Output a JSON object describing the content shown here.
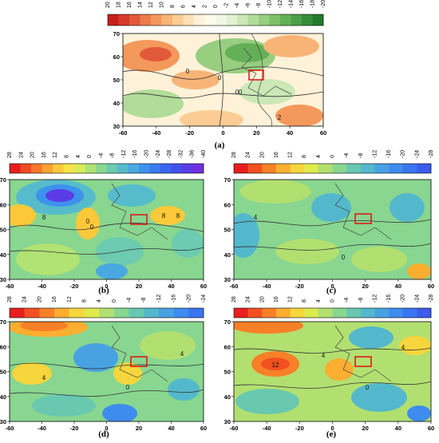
{
  "figure": {
    "panels": [
      {
        "id": "a",
        "label": "(a)",
        "colorbar_ticks": [
          "20",
          "18",
          "16",
          "14",
          "12",
          "10",
          "8",
          "6",
          "4",
          "2",
          "0",
          "-2",
          "-4",
          "-6",
          "-8",
          "-10",
          "-12",
          "-14",
          "-16",
          "-18",
          "-20"
        ],
        "colorbar_colors": [
          "#c81e1e",
          "#d83a2a",
          "#e25a3a",
          "#ec7a4a",
          "#f4995c",
          "#f8b476",
          "#fbcc93",
          "#fde2b6",
          "#fff2d8",
          "#fffbe8",
          "#f2f8e6",
          "#e2f2d2",
          "#cbe8b6",
          "#b2dc9a",
          "#98ce80",
          "#7ec068",
          "#64b056",
          "#4c9f46",
          "#368c38",
          "#227a2c"
        ],
        "xticks": [
          "-60",
          "-40",
          "-20",
          "0",
          "20",
          "40",
          "60"
        ],
        "yticks": [
          "70",
          "60",
          "50",
          "40",
          "30"
        ],
        "contour_labels": [
          "0",
          "0",
          "0",
          "0",
          "2"
        ]
      },
      {
        "id": "b",
        "label": "(b)",
        "colorbar_ticks": [
          "28",
          "24",
          "20",
          "16",
          "12",
          "8",
          "4",
          "0",
          "-4",
          "-8",
          "-12",
          "-16",
          "-20",
          "-24",
          "-28",
          "-32",
          "-36",
          "-40"
        ],
        "colorbar_colors": [
          "#e81e1e",
          "#f04a22",
          "#f6772a",
          "#fba232",
          "#fdc93a",
          "#f6e548",
          "#d9ec58",
          "#b0e274",
          "#8ad890",
          "#6ccbb0",
          "#56bccc",
          "#4aa8e0",
          "#3e92ec",
          "#3a7cf0",
          "#3a66f0",
          "#4450ee",
          "#5a3ce6",
          "#7030de"
        ],
        "xticks": [
          "-60",
          "-40",
          "-20",
          "0",
          "20",
          "40",
          "60"
        ],
        "yticks": [
          "70",
          "60",
          "50",
          "40",
          "30"
        ],
        "contour_labels": [
          "8",
          "0",
          "0",
          "8",
          "8"
        ]
      },
      {
        "id": "c",
        "label": "(c)",
        "colorbar_ticks": [
          "28",
          "24",
          "20",
          "16",
          "12",
          "8",
          "4",
          "0",
          "-4",
          "-8",
          "-12",
          "-16",
          "-20",
          "-24",
          "-28"
        ],
        "colorbar_colors": [
          "#e81e1e",
          "#f25020",
          "#f88028",
          "#fbae30",
          "#f6d63c",
          "#dfea4e",
          "#b2e070",
          "#88d690",
          "#68c8b0",
          "#54b8cc",
          "#48a2e2",
          "#3e8cee",
          "#3a74f0",
          "#3c5cec"
        ],
        "xticks": [
          "-60",
          "-40",
          "-20",
          "0",
          "20",
          "40",
          "60"
        ],
        "yticks": [
          "70",
          "60",
          "50",
          "40",
          "30"
        ],
        "contour_labels": [
          "4",
          "0"
        ]
      },
      {
        "id": "d",
        "label": "(d)",
        "colorbar_ticks": [
          "28",
          "24",
          "20",
          "16",
          "12",
          "8",
          "4",
          "0",
          "-4",
          "-8",
          "-12",
          "-16",
          "-20",
          "-24"
        ],
        "colorbar_colors": [
          "#e81e1e",
          "#f25020",
          "#f88028",
          "#fbae30",
          "#f6d63c",
          "#dfea4e",
          "#b2e070",
          "#88d690",
          "#68c8b0",
          "#54b8cc",
          "#48a2e2",
          "#3e8cee",
          "#3a74f0"
        ],
        "xticks": [
          "-60",
          "-40",
          "-20",
          "0",
          "20",
          "40",
          "60"
        ],
        "yticks": [
          "70",
          "60",
          "50",
          "40",
          "30"
        ],
        "contour_labels": [
          "4",
          "4",
          "0"
        ]
      },
      {
        "id": "e",
        "label": "(e)",
        "colorbar_ticks": [
          "28",
          "24",
          "20",
          "16",
          "12",
          "8",
          "4",
          "0",
          "-4",
          "-8",
          "-12",
          "-16",
          "-20",
          "-24",
          "-28"
        ],
        "colorbar_colors": [
          "#e81e1e",
          "#f25020",
          "#f88028",
          "#fbae30",
          "#f6d63c",
          "#dfea4e",
          "#b2e070",
          "#88d690",
          "#68c8b0",
          "#54b8cc",
          "#48a2e2",
          "#3e8cee",
          "#3a74f0",
          "#3c5cec"
        ],
        "xticks": [
          "-60",
          "-40",
          "-20",
          "0",
          "20",
          "40",
          "60"
        ],
        "yticks": [
          "70",
          "60",
          "50",
          "40",
          "30"
        ],
        "contour_labels": [
          "12",
          "4",
          "0",
          "4"
        ]
      }
    ]
  }
}
